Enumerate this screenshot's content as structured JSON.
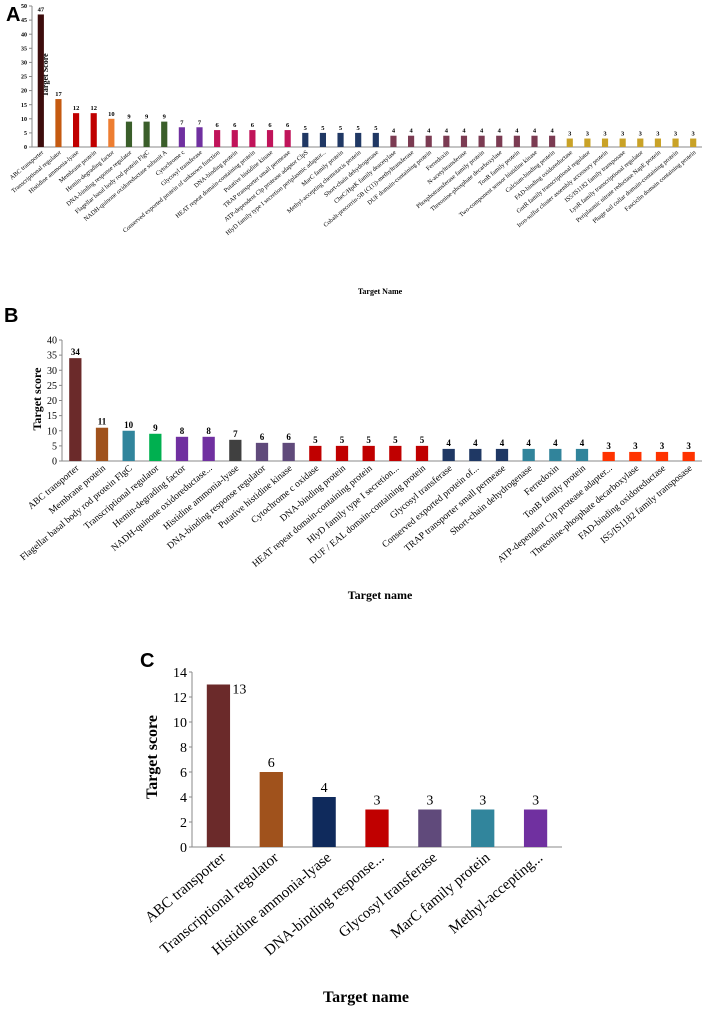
{
  "chart_data": [
    {
      "panel": "A",
      "type": "bar",
      "title": "",
      "xlabel": "Target Name",
      "ylabel": "Target Score",
      "ylim": [
        0,
        50
      ],
      "yticks": [
        0,
        5,
        10,
        15,
        20,
        25,
        30,
        35,
        40,
        45,
        50
      ],
      "categories": [
        "ABC transporter",
        "Transcriptional regulator",
        "Histidine ammonia-lyase",
        "Membrane protein",
        "Hemin-degrading factor",
        "DNA-binding response regulator",
        "Flagellar basal body rod protein FlgC",
        "NADH-quinone oxidoreductase subunit A",
        "Cytochrome c",
        "Glycosyl transferase",
        "Conserved exported protein of unknown function",
        "DNA-binding protein",
        "HEAT repeat domain-containing protein",
        "Putative histidine kinase",
        "TRAP transporter small permease",
        "ATP-dependent Clp protease adaptor ClpS",
        "HlyD family type I secretion periplasmic adaptor...",
        "MarC family protein",
        "Methyl-accepting chemotaxis protein",
        "Short-chain dehydrogenase",
        "CheC/HptK family deacetylase",
        "Cobalt-precorrin-5B (C(1))-methyltransferase",
        "DUF domain-containing protein",
        "Ferredoxin",
        "N-acetyltransferase",
        "Phosphotransferase family protein",
        "Threonine-phosphate decarboxylase",
        "TonB family protein",
        "Two-component sensor histidine kinase",
        "Calcium-binding protein",
        "FAD-binding oxidoreductase",
        "GntR family transcriptional regulator",
        "Iron-sulfur cluster assembly accessory protein",
        "IS5/IS1182 family transposase",
        "LysR family transcriptional regulator",
        "Periplasmic nitrate reductase NapE protein",
        "Phage tail collar domain-containing protein",
        "Fasciclin domain containing protein"
      ],
      "values": [
        47,
        17,
        12,
        12,
        10,
        9,
        9,
        9,
        7,
        7,
        6,
        6,
        6,
        6,
        6,
        5,
        5,
        5,
        5,
        5,
        4,
        4,
        4,
        4,
        4,
        4,
        4,
        4,
        4,
        4,
        3,
        3,
        3,
        3,
        3,
        3,
        3,
        3
      ],
      "colors": [
        "#3d0c0c",
        "#c55a11",
        "#c00000",
        "#c00000",
        "#ed7d31",
        "#3a5e2a",
        "#3a5e2a",
        "#3a5e2a",
        "#7030a0",
        "#7030a0",
        "#c0145a",
        "#c0145a",
        "#c0145a",
        "#c0145a",
        "#c0145a",
        "#203864",
        "#203864",
        "#203864",
        "#203864",
        "#203864",
        "#7b3b52",
        "#7b3b52",
        "#7b3b52",
        "#7b3b52",
        "#7b3b52",
        "#7b3b52",
        "#7b3b52",
        "#7b3b52",
        "#7b3b52",
        "#7b3b52",
        "#c9a227",
        "#c9a227",
        "#c9a227",
        "#c9a227",
        "#c9a227",
        "#c9a227",
        "#c9a227",
        "#c9a227"
      ]
    },
    {
      "panel": "B",
      "type": "bar",
      "title": "",
      "xlabel": "Target name",
      "ylabel": "Target score",
      "ylim": [
        0,
        40
      ],
      "yticks": [
        0,
        5,
        10,
        15,
        20,
        25,
        30,
        35,
        40
      ],
      "categories": [
        "ABC transporter",
        "Membrane protein",
        "Flagellar basal body rod protein FlgC",
        "Transcriptional regulator",
        "Hemin-degrading factor",
        "NADH-quinone oxidoreductase...",
        "Histidine ammonia-lyase",
        "DNA-binding response regulator",
        "Putative histidine kinase",
        "Cytochrome c oxidase",
        "DNA-binding protein",
        "HEAT repeat domain-containing protein",
        "HlyD family type I secretion...",
        "DUF / EAL domain-containing protein",
        "Glycosyl transferase",
        "Conserved exported protein of...",
        "TRAP transporter small permease",
        "Short-chain dehydrogenase",
        "Ferredoxin",
        "TonB family protein",
        "ATP-dependent Clp protease adapter...",
        "Threonine-phosphate decarboxylase",
        "FAD-binding oxidoreductase",
        "IS5/IS1182 family transposase"
      ],
      "values": [
        34,
        11,
        10,
        9,
        8,
        8,
        7,
        6,
        6,
        5,
        5,
        5,
        5,
        5,
        4,
        4,
        4,
        4,
        4,
        4,
        3,
        3,
        3,
        3
      ],
      "colors": [
        "#6b2a2a",
        "#a0521c",
        "#31859c",
        "#00b050",
        "#7030a0",
        "#7030a0",
        "#404040",
        "#604a7b",
        "#604a7b",
        "#c00000",
        "#c00000",
        "#c00000",
        "#c00000",
        "#c00000",
        "#1f3864",
        "#1f3864",
        "#1f3864",
        "#31849b",
        "#31849b",
        "#31849b",
        "#ff3300",
        "#ff3300",
        "#ff3300",
        "#ff3300"
      ]
    },
    {
      "panel": "C",
      "type": "bar",
      "title": "",
      "xlabel": "Target name",
      "ylabel": "Target score",
      "ylim": [
        0,
        14
      ],
      "yticks": [
        0,
        2,
        4,
        6,
        8,
        10,
        12,
        14
      ],
      "categories": [
        "ABC transporter",
        "Transcriptional regulator",
        "Histidine ammonia-lyase",
        "DNA-binding response...",
        "Glycosyl transferase",
        "MarC family protein",
        "Methyl-accepting..."
      ],
      "values": [
        13,
        6,
        4,
        3,
        3,
        3,
        3
      ],
      "colors": [
        "#6b2a2a",
        "#a0521c",
        "#0f2a5c",
        "#c00000",
        "#604a7b",
        "#31859c",
        "#7030a0"
      ]
    }
  ]
}
